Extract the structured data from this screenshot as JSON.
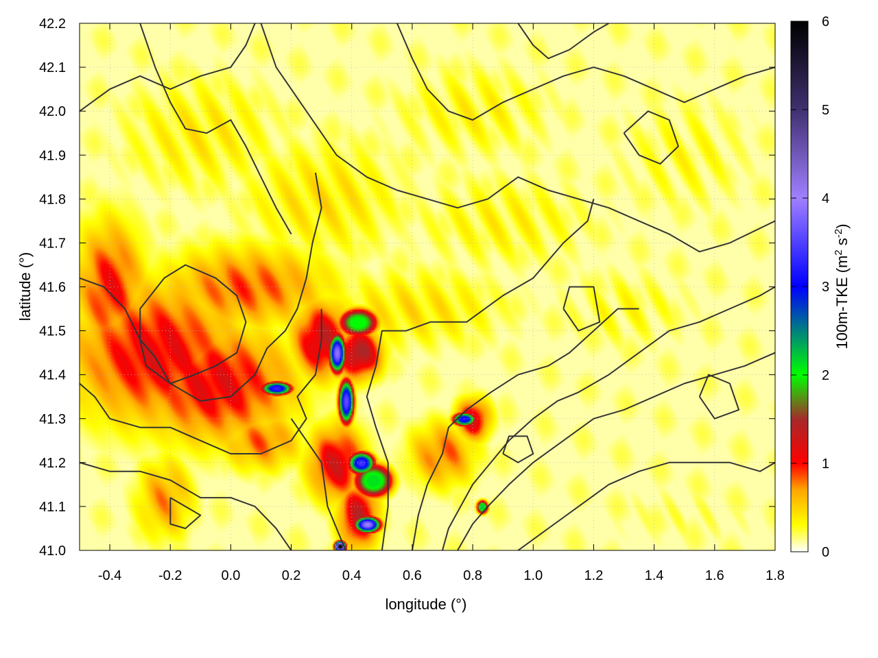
{
  "chart_data": {
    "type": "heatmap",
    "title": "",
    "xlabel": "longitude (°)",
    "ylabel": "latitude (°)",
    "colorbar_label": "100m-TKE (m² s⁻²)",
    "colorbar_label_parts": {
      "main": "100m-TKE (m",
      "sup1": "2",
      "mid": " s",
      "sup2": "-2",
      "end": ")"
    },
    "xlim": [
      -0.5,
      1.8
    ],
    "ylim": [
      41.0,
      42.2
    ],
    "clim": [
      0,
      6
    ],
    "x_ticks": [
      -0.4,
      -0.2,
      0.0,
      0.2,
      0.4,
      0.6,
      0.8,
      1.0,
      1.2,
      1.4,
      1.6,
      1.8
    ],
    "x_tick_labels": [
      "-0.4",
      "-0.2",
      "0.0",
      "0.2",
      "0.4",
      "0.6",
      "0.8",
      "1.0",
      "1.2",
      "1.4",
      "1.6",
      "1.8"
    ],
    "y_ticks": [
      41.0,
      41.1,
      41.2,
      41.3,
      41.4,
      41.5,
      41.6,
      41.7,
      41.8,
      41.9,
      42.0,
      42.1,
      42.2
    ],
    "y_tick_labels": [
      "41.0",
      "41.1",
      "41.2",
      "41.3",
      "41.4",
      "41.5",
      "41.6",
      "41.7",
      "41.8",
      "41.9",
      "42.0",
      "42.1",
      "42.2"
    ],
    "colorbar_ticks": [
      0,
      1,
      2,
      3,
      4,
      5,
      6
    ],
    "colorbar_tick_labels": [
      "0",
      "1",
      "2",
      "3",
      "4",
      "5",
      "6"
    ],
    "colormap": [
      {
        "v": 0.0,
        "c": "#ffffff"
      },
      {
        "v": 0.3,
        "c": "#ffff00"
      },
      {
        "v": 0.7,
        "c": "#ffa500"
      },
      {
        "v": 1.0,
        "c": "#ff0000"
      },
      {
        "v": 1.5,
        "c": "#a52a2a"
      },
      {
        "v": 2.0,
        "c": "#00ff00"
      },
      {
        "v": 3.0,
        "c": "#0000ff"
      },
      {
        "v": 4.0,
        "c": "#a080ff"
      },
      {
        "v": 5.0,
        "c": "#403070"
      },
      {
        "v": 6.0,
        "c": "#000000"
      }
    ],
    "grid": true,
    "tke_blobs": [
      {
        "lon": -0.25,
        "lat": 41.45,
        "rlon": 0.3,
        "rlat": 0.17,
        "v": 1.1
      },
      {
        "lon": -0.05,
        "lat": 41.38,
        "rlon": 0.28,
        "rlat": 0.14,
        "v": 1.1
      },
      {
        "lon": -0.4,
        "lat": 41.6,
        "rlon": 0.12,
        "rlat": 0.16,
        "v": 1.0
      },
      {
        "lon": 0.05,
        "lat": 41.6,
        "rlon": 0.3,
        "rlat": 0.1,
        "v": 0.85
      },
      {
        "lon": 0.3,
        "lat": 41.48,
        "rlon": 0.1,
        "rlat": 0.09,
        "v": 1.3
      },
      {
        "lon": 0.42,
        "lat": 41.45,
        "rlon": 0.08,
        "rlat": 0.06,
        "v": 1.5
      },
      {
        "lon": 0.35,
        "lat": 41.2,
        "rlon": 0.1,
        "rlat": 0.09,
        "v": 1.2
      },
      {
        "lon": 0.42,
        "lat": 41.08,
        "rlon": 0.07,
        "rlat": 0.08,
        "v": 1.3
      },
      {
        "lon": 0.7,
        "lat": 41.22,
        "rlon": 0.12,
        "rlat": 0.08,
        "v": 0.8
      },
      {
        "lon": -0.22,
        "lat": 41.12,
        "rlon": 0.1,
        "rlat": 0.1,
        "v": 0.7
      },
      {
        "lon": 0.1,
        "lat": 41.25,
        "rlon": 0.14,
        "rlat": 0.07,
        "v": 0.8
      },
      {
        "lon": 0.6,
        "lat": 41.55,
        "rlon": 0.35,
        "rlat": 0.1,
        "v": 0.4
      },
      {
        "lon": -0.1,
        "lat": 41.95,
        "rlon": 0.3,
        "rlat": 0.15,
        "v": 0.35
      },
      {
        "lon": 0.3,
        "lat": 41.8,
        "rlon": 0.3,
        "rlat": 0.15,
        "v": 0.4
      },
      {
        "lon": 0.9,
        "lat": 41.75,
        "rlon": 0.35,
        "rlat": 0.12,
        "v": 0.3
      },
      {
        "lon": 1.3,
        "lat": 41.55,
        "rlon": 0.25,
        "rlat": 0.1,
        "v": 0.25
      },
      {
        "lon": 0.8,
        "lat": 42.0,
        "rlon": 0.3,
        "rlat": 0.12,
        "v": 0.3
      },
      {
        "lon": 1.5,
        "lat": 41.9,
        "rlon": 0.25,
        "rlat": 0.15,
        "v": 0.25
      },
      {
        "lon": 1.5,
        "lat": 41.08,
        "rlon": 0.3,
        "rlat": 0.08,
        "v": 0.12
      },
      {
        "lon": 0.8,
        "lat": 41.3,
        "rlon": 0.06,
        "rlat": 0.05,
        "v": 1.2
      }
    ],
    "tke_peaks": [
      {
        "lon": 0.35,
        "lat": 41.45,
        "rlon": 0.022,
        "rlat": 0.035,
        "v": 3.9
      },
      {
        "lon": 0.38,
        "lat": 41.34,
        "rlon": 0.02,
        "rlat": 0.04,
        "v": 3.6
      },
      {
        "lon": 0.15,
        "lat": 41.37,
        "rlon": 0.04,
        "rlat": 0.012,
        "v": 3.3
      },
      {
        "lon": 0.43,
        "lat": 41.2,
        "rlon": 0.035,
        "rlat": 0.02,
        "v": 3.4
      },
      {
        "lon": 0.45,
        "lat": 41.06,
        "rlon": 0.035,
        "rlat": 0.015,
        "v": 4.0
      },
      {
        "lon": 0.36,
        "lat": 41.01,
        "rlon": 0.015,
        "rlat": 0.01,
        "v": 6.0
      },
      {
        "lon": 0.77,
        "lat": 41.3,
        "rlon": 0.03,
        "rlat": 0.012,
        "v": 3.2
      },
      {
        "lon": 0.83,
        "lat": 41.1,
        "rlon": 0.015,
        "rlat": 0.012,
        "v": 2.2
      },
      {
        "lon": 0.42,
        "lat": 41.52,
        "rlon": 0.05,
        "rlat": 0.025,
        "v": 2.0
      },
      {
        "lon": 0.47,
        "lat": 41.16,
        "rlon": 0.05,
        "rlat": 0.03,
        "v": 2.1
      }
    ],
    "contours": [
      [
        [
          -0.5,
          41.62
        ],
        [
          -0.42,
          41.6
        ],
        [
          -0.35,
          41.55
        ],
        [
          -0.3,
          41.48
        ],
        [
          -0.25,
          41.44
        ],
        [
          -0.2,
          41.38
        ],
        [
          -0.1,
          41.34
        ],
        [
          0.0,
          41.35
        ],
        [
          0.08,
          41.4
        ],
        [
          0.12,
          41.46
        ],
        [
          0.18,
          41.5
        ],
        [
          0.22,
          41.55
        ],
        [
          0.25,
          41.62
        ],
        [
          0.27,
          41.7
        ],
        [
          0.3,
          41.78
        ],
        [
          0.28,
          41.86
        ]
      ],
      [
        [
          -0.3,
          41.55
        ],
        [
          -0.22,
          41.62
        ],
        [
          -0.15,
          41.65
        ],
        [
          -0.05,
          41.62
        ],
        [
          0.02,
          41.58
        ],
        [
          0.05,
          41.52
        ],
        [
          0.02,
          41.45
        ],
        [
          -0.05,
          41.42
        ],
        [
          -0.12,
          41.4
        ],
        [
          -0.2,
          41.38
        ],
        [
          -0.28,
          41.42
        ],
        [
          -0.3,
          41.48
        ],
        [
          -0.3,
          41.55
        ]
      ],
      [
        [
          -0.5,
          41.38
        ],
        [
          -0.45,
          41.35
        ],
        [
          -0.4,
          41.3
        ],
        [
          -0.3,
          41.28
        ],
        [
          -0.2,
          41.28
        ],
        [
          -0.1,
          41.25
        ],
        [
          0.0,
          41.22
        ],
        [
          0.1,
          41.22
        ],
        [
          0.2,
          41.25
        ],
        [
          0.25,
          41.3
        ],
        [
          0.22,
          41.35
        ],
        [
          0.28,
          41.4
        ],
        [
          0.3,
          41.48
        ],
        [
          0.3,
          41.55
        ]
      ],
      [
        [
          -0.5,
          41.2
        ],
        [
          -0.4,
          41.18
        ],
        [
          -0.3,
          41.18
        ],
        [
          -0.2,
          41.16
        ],
        [
          -0.1,
          41.12
        ],
        [
          0.0,
          41.12
        ],
        [
          0.08,
          41.1
        ],
        [
          0.15,
          41.05
        ],
        [
          0.2,
          41.0
        ]
      ],
      [
        [
          -0.2,
          41.12
        ],
        [
          -0.15,
          41.1
        ],
        [
          -0.1,
          41.08
        ],
        [
          -0.15,
          41.05
        ],
        [
          -0.2,
          41.06
        ],
        [
          -0.2,
          41.12
        ]
      ],
      [
        [
          0.2,
          41.3
        ],
        [
          0.25,
          41.25
        ],
        [
          0.3,
          41.2
        ],
        [
          0.32,
          41.1
        ],
        [
          0.35,
          41.05
        ],
        [
          0.38,
          41.0
        ]
      ],
      [
        [
          0.5,
          41.0
        ],
        [
          0.52,
          41.1
        ],
        [
          0.52,
          41.2
        ],
        [
          0.48,
          41.28
        ],
        [
          0.45,
          41.35
        ],
        [
          0.48,
          41.42
        ],
        [
          0.5,
          41.5
        ],
        [
          0.58,
          41.5
        ],
        [
          0.66,
          41.52
        ],
        [
          0.78,
          41.52
        ],
        [
          0.9,
          41.58
        ],
        [
          1.0,
          41.62
        ],
        [
          1.1,
          41.7
        ],
        [
          1.18,
          41.75
        ],
        [
          1.2,
          41.8
        ]
      ],
      [
        [
          0.6,
          41.0
        ],
        [
          0.62,
          41.08
        ],
        [
          0.65,
          41.15
        ],
        [
          0.7,
          41.22
        ],
        [
          0.72,
          41.28
        ],
        [
          0.78,
          41.32
        ],
        [
          0.86,
          41.36
        ],
        [
          0.95,
          41.4
        ],
        [
          1.05,
          41.42
        ],
        [
          1.12,
          41.45
        ],
        [
          1.2,
          41.5
        ],
        [
          1.28,
          41.55
        ],
        [
          1.35,
          41.55
        ]
      ],
      [
        [
          0.7,
          41.0
        ],
        [
          0.72,
          41.05
        ],
        [
          0.76,
          41.1
        ],
        [
          0.8,
          41.15
        ],
        [
          0.86,
          41.2
        ],
        [
          0.92,
          41.25
        ],
        [
          1.0,
          41.3
        ],
        [
          1.08,
          41.34
        ],
        [
          1.15,
          41.36
        ],
        [
          1.25,
          41.4
        ],
        [
          1.35,
          41.45
        ],
        [
          1.45,
          41.5
        ],
        [
          1.55,
          41.52
        ],
        [
          1.65,
          41.55
        ],
        [
          1.75,
          41.58
        ],
        [
          1.8,
          41.6
        ]
      ],
      [
        [
          0.75,
          41.0
        ],
        [
          0.8,
          41.06
        ],
        [
          0.85,
          41.1
        ],
        [
          0.92,
          41.15
        ],
        [
          1.0,
          41.2
        ],
        [
          1.1,
          41.25
        ],
        [
          1.2,
          41.3
        ],
        [
          1.3,
          41.32
        ],
        [
          1.4,
          41.35
        ],
        [
          1.5,
          41.38
        ],
        [
          1.6,
          41.4
        ],
        [
          1.7,
          41.42
        ],
        [
          1.8,
          41.45
        ]
      ],
      [
        [
          0.95,
          41.0
        ],
        [
          1.05,
          41.05
        ],
        [
          1.15,
          41.1
        ],
        [
          1.25,
          41.15
        ],
        [
          1.35,
          41.18
        ],
        [
          1.45,
          41.2
        ],
        [
          1.55,
          41.2
        ],
        [
          1.65,
          41.2
        ],
        [
          1.75,
          41.18
        ],
        [
          1.8,
          41.2
        ]
      ],
      [
        [
          0.1,
          42.2
        ],
        [
          0.15,
          42.1
        ],
        [
          0.2,
          42.05
        ],
        [
          0.25,
          42.0
        ],
        [
          0.3,
          41.95
        ],
        [
          0.35,
          41.9
        ],
        [
          0.45,
          41.85
        ],
        [
          0.55,
          41.82
        ],
        [
          0.65,
          41.8
        ],
        [
          0.75,
          41.78
        ],
        [
          0.85,
          41.8
        ],
        [
          0.95,
          41.85
        ],
        [
          1.05,
          41.82
        ],
        [
          1.15,
          41.8
        ],
        [
          1.25,
          41.78
        ],
        [
          1.35,
          41.75
        ],
        [
          1.45,
          41.72
        ],
        [
          1.55,
          41.68
        ],
        [
          1.65,
          41.7
        ],
        [
          1.8,
          41.75
        ]
      ],
      [
        [
          -0.3,
          42.2
        ],
        [
          -0.25,
          42.1
        ],
        [
          -0.2,
          42.02
        ],
        [
          -0.15,
          41.96
        ],
        [
          -0.08,
          41.95
        ],
        [
          0.0,
          41.98
        ],
        [
          0.05,
          41.92
        ],
        [
          0.1,
          41.85
        ],
        [
          0.15,
          41.78
        ],
        [
          0.2,
          41.72
        ]
      ],
      [
        [
          0.55,
          42.2
        ],
        [
          0.6,
          42.12
        ],
        [
          0.65,
          42.05
        ],
        [
          0.72,
          42.0
        ],
        [
          0.8,
          41.98
        ],
        [
          0.9,
          42.02
        ],
        [
          1.0,
          42.05
        ],
        [
          1.1,
          42.08
        ],
        [
          1.2,
          42.1
        ],
        [
          1.3,
          42.08
        ],
        [
          1.4,
          42.05
        ],
        [
          1.5,
          42.02
        ],
        [
          1.6,
          42.05
        ],
        [
          1.7,
          42.08
        ],
        [
          1.8,
          42.1
        ]
      ],
      [
        [
          1.3,
          41.95
        ],
        [
          1.35,
          41.9
        ],
        [
          1.42,
          41.88
        ],
        [
          1.48,
          41.92
        ],
        [
          1.45,
          41.98
        ],
        [
          1.38,
          42.0
        ],
        [
          1.3,
          41.95
        ]
      ],
      [
        [
          0.95,
          42.2
        ],
        [
          1.0,
          42.15
        ],
        [
          1.05,
          42.12
        ],
        [
          1.12,
          42.14
        ],
        [
          1.2,
          42.18
        ],
        [
          1.25,
          42.2
        ]
      ],
      [
        [
          -0.5,
          42.0
        ],
        [
          -0.4,
          42.05
        ],
        [
          -0.3,
          42.08
        ],
        [
          -0.2,
          42.05
        ],
        [
          -0.1,
          42.08
        ],
        [
          0.0,
          42.1
        ],
        [
          0.05,
          42.15
        ],
        [
          0.08,
          42.2
        ]
      ],
      [
        [
          1.1,
          41.55
        ],
        [
          1.15,
          41.5
        ],
        [
          1.22,
          41.52
        ],
        [
          1.2,
          41.6
        ],
        [
          1.12,
          41.6
        ],
        [
          1.1,
          41.55
        ]
      ],
      [
        [
          1.55,
          41.35
        ],
        [
          1.6,
          41.3
        ],
        [
          1.68,
          41.32
        ],
        [
          1.65,
          41.38
        ],
        [
          1.58,
          41.4
        ],
        [
          1.55,
          41.35
        ]
      ],
      [
        [
          0.9,
          41.22
        ],
        [
          0.95,
          41.2
        ],
        [
          1.0,
          41.22
        ],
        [
          0.98,
          41.26
        ],
        [
          0.92,
          41.26
        ],
        [
          0.9,
          41.22
        ]
      ]
    ]
  }
}
